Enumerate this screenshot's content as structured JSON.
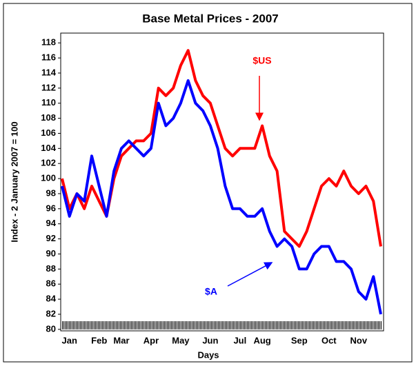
{
  "chart_data": {
    "type": "line",
    "title": "Base Metal Prices - 2007",
    "x_label": "Days",
    "y_label": "Index - 2 January 2007 = 100",
    "categories": [
      null,
      "Jan",
      null,
      null,
      null,
      "Feb",
      null,
      null,
      "Mar",
      null,
      null,
      null,
      "Apr",
      null,
      null,
      null,
      "May",
      null,
      null,
      null,
      "Jun",
      null,
      null,
      null,
      "Jul",
      null,
      null,
      "Aug",
      null,
      null,
      null,
      null,
      "Sep",
      null,
      null,
      null,
      "Oct",
      null,
      null,
      null,
      "Nov",
      null,
      null,
      null
    ],
    "series": [
      {
        "name": "$US",
        "color": "#ff0000",
        "values": [
          100,
          96,
          98,
          96,
          99,
          97,
          95,
          100,
          103,
          104,
          105,
          105,
          106,
          112,
          111,
          112,
          115,
          117,
          113,
          111,
          110,
          107,
          104,
          103,
          104,
          104,
          104,
          107,
          103,
          101,
          93,
          92,
          91,
          93,
          96,
          99,
          100,
          99,
          101,
          99,
          98,
          99,
          97,
          91
        ]
      },
      {
        "name": "$A",
        "color": "#0000ff",
        "values": [
          99,
          95,
          98,
          97,
          103,
          99,
          95,
          101,
          104,
          105,
          104,
          103,
          104,
          110,
          107,
          108,
          110,
          113,
          110,
          109,
          107,
          104,
          99,
          96,
          96,
          95,
          95,
          96,
          93,
          91,
          92,
          91,
          88,
          88,
          90,
          91,
          91,
          89,
          89,
          88,
          85,
          84,
          87,
          82
        ]
      }
    ],
    "annotations": [
      {
        "text": "$US",
        "series": 0
      },
      {
        "text": "$A",
        "series": 1
      }
    ],
    "ylim": [
      79.8,
      119.3
    ],
    "yticks": [
      80,
      82,
      84,
      86,
      88,
      90,
      92,
      94,
      96,
      98,
      100,
      102,
      104,
      106,
      108,
      110,
      112,
      114,
      116,
      118
    ]
  }
}
